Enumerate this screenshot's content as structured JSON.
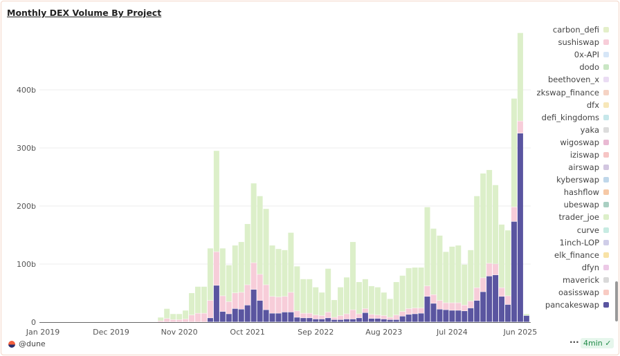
{
  "title": "Monthly DEX Volume By Project",
  "footer": {
    "author": "@dune",
    "more": "···",
    "refresh": "4min",
    "refresh_icon": "check-circle-icon"
  },
  "legend": [
    {
      "name": "carbon_defi",
      "color": "#e3efc9"
    },
    {
      "name": "sushiswap",
      "color": "#f7cdd9"
    },
    {
      "name": "0x-API",
      "color": "#d6e6f7"
    },
    {
      "name": "dodo",
      "color": "#c9e6c4"
    },
    {
      "name": "beethoven_x",
      "color": "#eadcf3"
    },
    {
      "name": "zkswap_finance",
      "color": "#f5d3c4"
    },
    {
      "name": "dfx",
      "color": "#f7e7b9"
    },
    {
      "name": "defi_kingdoms",
      "color": "#c6e7ea"
    },
    {
      "name": "yaka",
      "color": "#dcdcdc"
    },
    {
      "name": "wigoswap",
      "color": "#e9b9d3"
    },
    {
      "name": "iziswap",
      "color": "#f6c5c5"
    },
    {
      "name": "airswap",
      "color": "#d2c6e0"
    },
    {
      "name": "kyberswap",
      "color": "#bfd7ea"
    },
    {
      "name": "hashflow",
      "color": "#f6c9a6"
    },
    {
      "name": "ubeswap",
      "color": "#a9cfc2"
    },
    {
      "name": "trader_joe",
      "color": "#dcefc9"
    },
    {
      "name": "curve",
      "color": "#c7ebe2"
    },
    {
      "name": "1inch-LOP",
      "color": "#cfcde8"
    },
    {
      "name": "elk_finance",
      "color": "#f8e2a6"
    },
    {
      "name": "dfyn",
      "color": "#ecc9e6"
    },
    {
      "name": "maverick",
      "color": "#d9d9d9"
    },
    {
      "name": "oasisswap",
      "color": "#f8cbc3"
    },
    {
      "name": "pancakeswap",
      "color": "#5a55a0"
    }
  ],
  "chart_data": {
    "type": "bar",
    "stacked": true,
    "title": "Monthly DEX Volume By Project",
    "xlabel": "",
    "ylabel": "",
    "x_range": [
      "2019-01",
      "2025-07"
    ],
    "data_start": "2020-08",
    "x_ticks": [
      "Jan 2019",
      "Dec 2019",
      "Nov 2020",
      "Oct 2021",
      "Sep 2022",
      "Aug 2023",
      "Jul 2024",
      "Jun 2025"
    ],
    "x_tick_step_months": 11,
    "y_ticks": [
      "0",
      "100b",
      "200b",
      "300b",
      "400b"
    ],
    "y_tick_values": [
      0,
      100,
      200,
      300,
      400
    ],
    "ylim": [
      0,
      510
    ],
    "unit": "b",
    "grid": true,
    "legend_position": "right",
    "series": [
      {
        "name": "pancakeswap",
        "color": "#5a55a0",
        "values": [
          0,
          0,
          0,
          0,
          0,
          0,
          0,
          0,
          7,
          63,
          18,
          14,
          23,
          22,
          29,
          56,
          37,
          21,
          15,
          15,
          17,
          17,
          8,
          7,
          7,
          5,
          5,
          7,
          4,
          4,
          5,
          5,
          7,
          16,
          6,
          6,
          5,
          4,
          4,
          10,
          13,
          14,
          15,
          44,
          32,
          22,
          21,
          20,
          20,
          19,
          24,
          37,
          52,
          79,
          81,
          44,
          30,
          173,
          325,
          11
        ]
      },
      {
        "name": "sushiswap",
        "color": "#f7cdd9",
        "values": [
          2,
          6,
          4,
          4,
          5,
          12,
          15,
          15,
          30,
          58,
          27,
          21,
          27,
          29,
          35,
          46,
          45,
          43,
          29,
          28,
          27,
          34,
          11,
          8,
          8,
          7,
          6,
          10,
          4,
          7,
          9,
          16,
          7,
          7,
          7,
          6,
          6,
          4,
          8,
          8,
          10,
          10,
          9,
          18,
          15,
          15,
          12,
          13,
          13,
          10,
          12,
          22,
          24,
          22,
          19,
          15,
          15,
          25,
          21,
          0
        ]
      },
      {
        "name": "trader_joe",
        "color": "#dcefc9",
        "values": [
          6,
          17,
          10,
          10,
          15,
          38,
          46,
          46,
          90,
          174,
          82,
          63,
          82,
          87,
          105,
          137,
          135,
          131,
          88,
          83,
          80,
          103,
          77,
          59,
          59,
          48,
          40,
          75,
          30,
          49,
          63,
          117,
          55,
          51,
          49,
          48,
          40,
          32,
          57,
          62,
          70,
          70,
          70,
          136,
          114,
          112,
          88,
          97,
          99,
          70,
          88,
          158,
          180,
          161,
          136,
          109,
          113,
          187,
          152,
          3
        ]
      }
    ]
  }
}
